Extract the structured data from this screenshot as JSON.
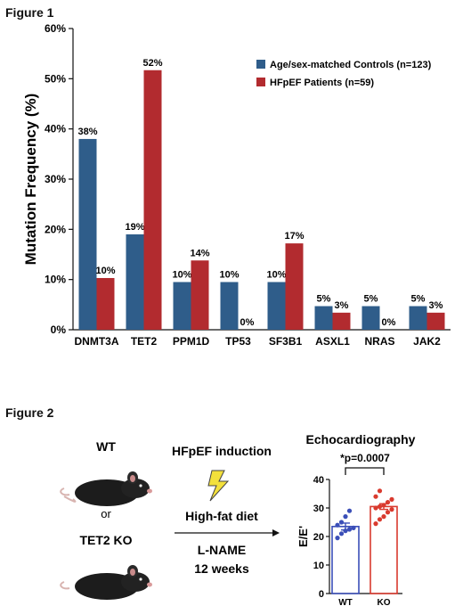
{
  "figure1": {
    "label": "Figure 1",
    "chart_data": {
      "type": "bar",
      "ylabel": "Mutation Frequency (%)",
      "ylim": [
        0,
        60
      ],
      "yticks": [
        "0%",
        "10%",
        "20%",
        "30%",
        "40%",
        "50%",
        "60%"
      ],
      "categories": [
        "DNMT3A",
        "TET2",
        "PPM1D",
        "TP53",
        "SF3B1",
        "ASXL1",
        "NRAS",
        "JAK2"
      ],
      "series": [
        {
          "name": "Age/sex-matched Controls (n=123)",
          "color": "#2f5d8a",
          "values": [
            38,
            19,
            9.5,
            9.5,
            9.5,
            4.7,
            4.7,
            4.7
          ],
          "labels": [
            "38%",
            "19%",
            "10%",
            "10%",
            "10%",
            "5%",
            "5%",
            "5%"
          ]
        },
        {
          "name": "HFpEF Patients (n=59)",
          "color": "#b22b2f",
          "values": [
            10.3,
            51.7,
            13.8,
            0,
            17.2,
            3.4,
            0,
            3.4
          ],
          "labels": [
            "10%",
            "52%",
            "14%",
            "0%",
            "17%",
            "3%",
            "0%",
            "3%"
          ]
        }
      ],
      "legend_position": "top-right"
    }
  },
  "figure2": {
    "label": "Figure 2",
    "mouse1_label": "WT",
    "or_label": "or",
    "mouse2_label": "TET2 KO",
    "induction_title": "HFpEF induction",
    "diet_label": "High-fat diet",
    "drug_label": "L-NAME",
    "duration_label": "12 weeks",
    "chart_data": {
      "type": "bar",
      "title": "Echocardiography",
      "annotation": "*p=0.0007",
      "ylabel": "E/E'",
      "ylim": [
        0,
        40
      ],
      "yticks": [
        "0",
        "10",
        "20",
        "30",
        "40"
      ],
      "categories": [
        "WT",
        "KO"
      ],
      "series": [
        {
          "name": "WT",
          "color": "#3b4fb8",
          "mean": 23.5,
          "sem": 1.2,
          "points": [
            19.5,
            21,
            22,
            22.5,
            23,
            24,
            25,
            27,
            29
          ]
        },
        {
          "name": "KO",
          "color": "#d93a2e",
          "mean": 30.5,
          "sem": 1.0,
          "points": [
            24.5,
            26,
            27,
            28.5,
            29.5,
            30,
            30.5,
            31,
            32,
            33,
            34,
            36
          ]
        }
      ]
    }
  }
}
